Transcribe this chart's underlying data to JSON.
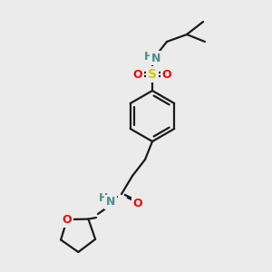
{
  "bg_color": "#ebebeb",
  "bond_color": "#1a1a1a",
  "atom_colors": {
    "N": "#4a9090",
    "O": "#ff0000",
    "S": "#cccc00",
    "C": "#1a1a1a"
  },
  "figsize": [
    3.0,
    3.0
  ],
  "dpi": 100,
  "bond_lw": 1.6,
  "font_size_atom": 9,
  "font_size_S": 10
}
